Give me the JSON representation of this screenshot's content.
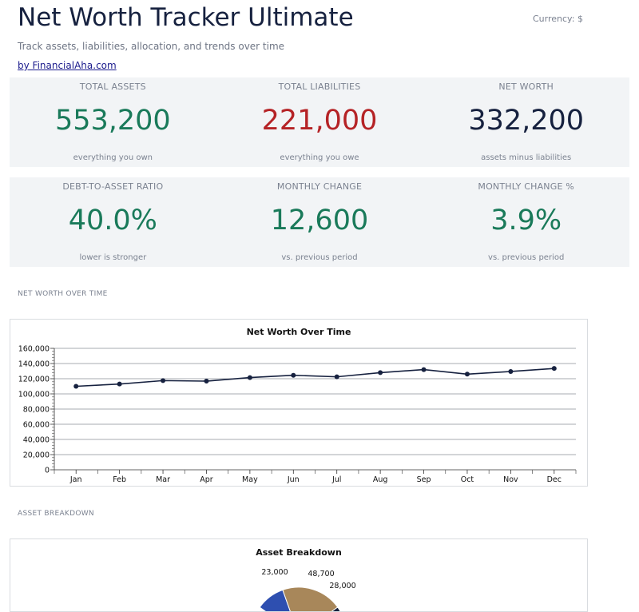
{
  "header": {
    "title": "Net Worth Tracker Ultimate",
    "currency": "Currency: $",
    "subtitle": "Track assets, liabilities, allocation, and trends over time",
    "byline": "by FinancialAha.com"
  },
  "summary_row1": [
    {
      "label": "TOTAL ASSETS",
      "value": "553,200",
      "note": "everything you own",
      "color": "#1a7a5a"
    },
    {
      "label": "TOTAL LIABILITIES",
      "value": "221,000",
      "note": "everything you owe",
      "color": "#b52326"
    },
    {
      "label": "NET WORTH",
      "value": "332,200",
      "note": "assets minus liabilities",
      "color": "#16213f"
    }
  ],
  "summary_row2": [
    {
      "label": "DEBT-TO-ASSET RATIO",
      "value": "40.0%",
      "note": "lower is stronger",
      "color": "#1a7a5a"
    },
    {
      "label": "MONTHLY CHANGE",
      "value": "12,600",
      "note": "vs. previous period",
      "color": "#1a7a5a"
    },
    {
      "label": "MONTHLY CHANGE %",
      "value": "3.9%",
      "note": "vs. previous period",
      "color": "#1a7a5a"
    }
  ],
  "sections": {
    "net_worth_over_time": "NET WORTH OVER TIME",
    "asset_breakdown": "ASSET BREAKDOWN"
  },
  "chart_data": [
    {
      "type": "line",
      "title": "Net Worth Over Time",
      "categories": [
        "Jan",
        "Feb",
        "Mar",
        "Apr",
        "May",
        "Jun",
        "Jul",
        "Aug",
        "Sep",
        "Oct",
        "Nov",
        "Dec"
      ],
      "series": [
        {
          "values": [
            110000,
            113000,
            117500,
            116800,
            121500,
            124500,
            122500,
            128000,
            132000,
            126000,
            129500,
            133500
          ]
        }
      ],
      "ylim": [
        0,
        160000
      ],
      "yticks": [
        "0",
        "20,000",
        "40,000",
        "60,000",
        "80,000",
        "100,000",
        "120,000",
        "140,000",
        "160,000"
      ],
      "xlabel": "",
      "ylabel": "",
      "grid": true,
      "line_color": "#16213f"
    },
    {
      "type": "pie",
      "title": "Asset Breakdown",
      "slices": [
        {
          "label": "23,000",
          "value": 23000,
          "color": "#2e4fb0"
        },
        {
          "label": "48,700",
          "value": 48700,
          "color": "#a8875a"
        },
        {
          "label": "28,000",
          "value": 28000,
          "color": "#16213f"
        }
      ]
    }
  ]
}
